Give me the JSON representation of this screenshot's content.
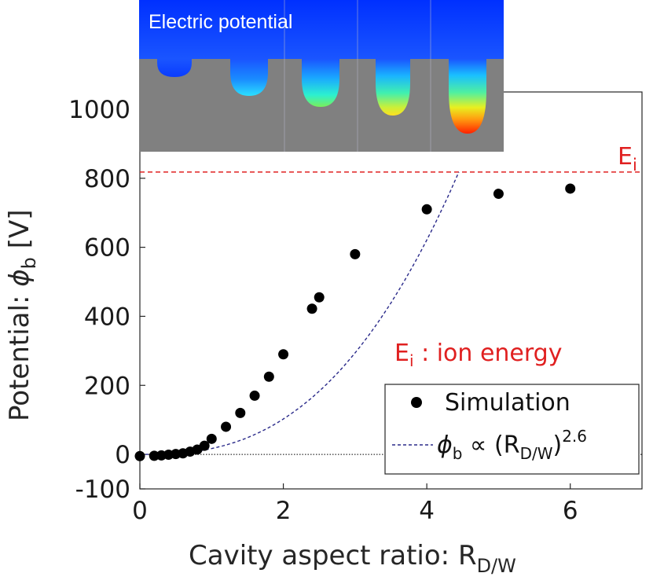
{
  "chart_data": {
    "type": "scatter",
    "xlabel": "Cavity aspect ratio: R",
    "xlabel_sub": "D/W",
    "ylabel_prefix": "Potential: ",
    "ylabel_symbol": "ϕ",
    "ylabel_sub": "b",
    "ylabel_suffix": " [V]",
    "xlim": [
      0,
      7
    ],
    "ylim": [
      -100,
      1050
    ],
    "x_ticks": [
      0,
      2,
      4,
      6
    ],
    "x_tick_labels": [
      "0",
      "2",
      "4",
      "6"
    ],
    "y_ticks": [
      -100,
      0,
      200,
      400,
      600,
      800,
      1000
    ],
    "y_tick_labels": [
      "-100",
      "0",
      "200",
      "400",
      "600",
      "800",
      "1000"
    ],
    "series": [
      {
        "name": "Simulation",
        "marker": "filled-circle",
        "color": "#000000",
        "x": [
          0.0,
          0.2,
          0.3,
          0.4,
          0.5,
          0.6,
          0.7,
          0.8,
          0.9,
          1.0,
          1.2,
          1.4,
          1.6,
          1.8,
          2.0,
          2.4,
          2.5,
          3.0,
          4.0,
          5.0,
          6.0
        ],
        "y": [
          -5,
          -4,
          -3,
          -1,
          1,
          3,
          8,
          14,
          25,
          45,
          80,
          120,
          170,
          225,
          290,
          422,
          455,
          580,
          710,
          755,
          770
        ]
      }
    ],
    "fit": {
      "legend_symbol": "ϕ",
      "legend_sub": "b",
      "legend_mid": " ∝ (R",
      "legend_sub2": "D/W",
      "legend_close": ")",
      "legend_exp": "2.6",
      "exponent": 2.6,
      "coefficient": 16.9,
      "color": "#2a2a8a",
      "style": "dashed"
    },
    "reference_line": {
      "label": "E",
      "label_sub": "i",
      "value": 818,
      "color": "#e02020",
      "style": "dashed"
    },
    "annotation": {
      "prefix": "E",
      "sub": "i",
      "text": " : ion energy",
      "color": "#e02020"
    },
    "zero_line": true,
    "grid": false,
    "legend_position": "lower-right",
    "inset": {
      "title": "Electric potential",
      "top_color": "#0033ff",
      "bottom_color": "#808080"
    }
  }
}
